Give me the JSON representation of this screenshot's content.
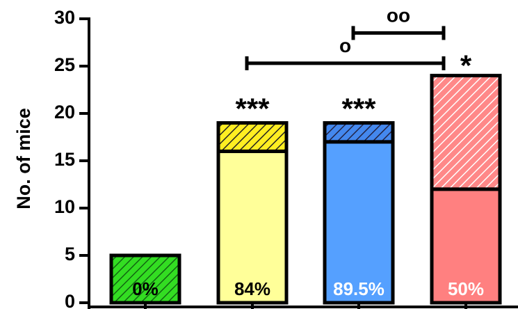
{
  "chart_data": {
    "type": "bar",
    "stacked": true,
    "ylabel": "No. of mice",
    "ylim": [
      0,
      30
    ],
    "yticks": [
      "0",
      "5",
      "10",
      "15",
      "20",
      "25",
      "30"
    ],
    "bars": [
      {
        "bottom": 5,
        "top": 0,
        "total": 5,
        "percent_label": "0%",
        "solid_color": "#33dd22",
        "hatch_color": "#33dd22",
        "hatch_line": "#116611",
        "bottom_hatched": true,
        "label_color": "#000000",
        "significance": ""
      },
      {
        "bottom": 16,
        "top": 3,
        "total": 19,
        "percent_label": "84%",
        "solid_color": "#ffff99",
        "hatch_color": "#ffee22",
        "hatch_line": "#222222",
        "bottom_hatched": false,
        "label_color": "#000000",
        "significance": "***"
      },
      {
        "bottom": 17,
        "top": 2,
        "total": 19,
        "percent_label": "89.5%",
        "solid_color": "#55a0ff",
        "hatch_color": "#4488ee",
        "hatch_line": "#222244",
        "bottom_hatched": false,
        "label_color": "#ffffff",
        "significance": "***"
      },
      {
        "bottom": 12,
        "top": 12,
        "total": 24,
        "percent_label": "50%",
        "solid_color": "#ff8080",
        "hatch_color": "#ff8888",
        "hatch_line": "#ffffff",
        "bottom_hatched": false,
        "label_color": "#ffffff",
        "significance": "*"
      }
    ],
    "comparisons": [
      {
        "from": 1,
        "to": 3,
        "label": "o",
        "y": 25.3
      },
      {
        "from": 2,
        "to": 3,
        "label": "oo",
        "y": 28.5
      }
    ]
  }
}
